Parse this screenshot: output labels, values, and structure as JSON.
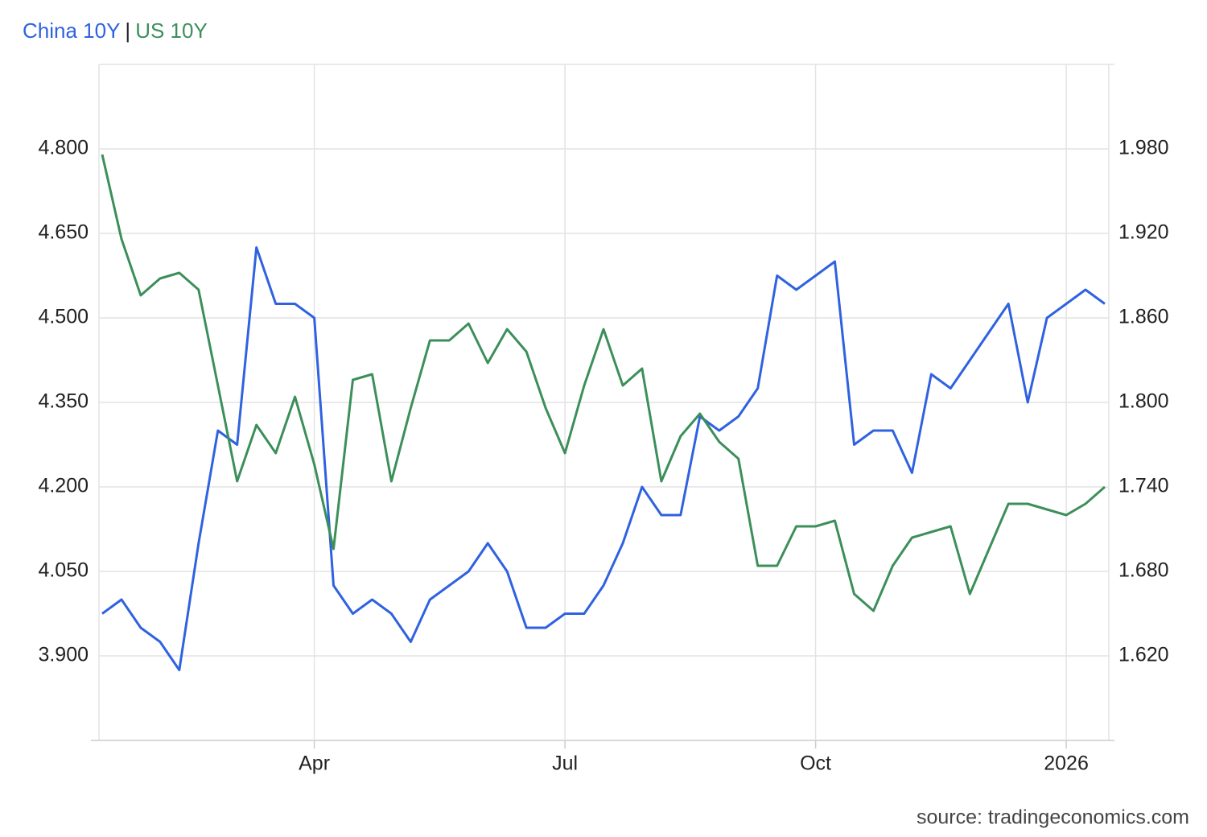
{
  "chart_data": {
    "type": "line",
    "legend_separator": "|",
    "source": "source: tradingeconomics.com",
    "grid": true,
    "categories": [
      null,
      null,
      null,
      null,
      null,
      null,
      null,
      null,
      null,
      null,
      null,
      "Apr",
      null,
      null,
      null,
      null,
      null,
      null,
      null,
      null,
      null,
      null,
      null,
      null,
      "Jul",
      null,
      null,
      null,
      null,
      null,
      null,
      null,
      null,
      null,
      null,
      null,
      null,
      "Oct",
      null,
      null,
      null,
      null,
      null,
      null,
      null,
      null,
      null,
      null,
      null,
      null,
      "2026",
      null,
      null
    ],
    "series": [
      {
        "name": "China 10Y",
        "color": "#2f62e0",
        "axis": "y2",
        "values": [
          1.65,
          1.66,
          1.64,
          1.63,
          1.61,
          1.7,
          1.78,
          1.77,
          1.91,
          1.87,
          1.87,
          1.86,
          1.67,
          1.65,
          1.66,
          1.65,
          1.63,
          1.66,
          1.67,
          1.68,
          1.7,
          1.68,
          1.64,
          1.64,
          1.65,
          1.65,
          1.67,
          1.7,
          1.74,
          1.72,
          1.72,
          1.79,
          1.78,
          1.79,
          1.81,
          1.89,
          1.88,
          1.89,
          1.9,
          1.77,
          1.78,
          1.78,
          1.75,
          1.82,
          1.81,
          1.83,
          1.85,
          1.87,
          1.8,
          1.86,
          1.87,
          1.88,
          1.87
        ]
      },
      {
        "name": "US 10Y",
        "color": "#3c8f5a",
        "axis": "y",
        "values": [
          4.79,
          4.64,
          4.54,
          4.57,
          4.58,
          4.55,
          4.38,
          4.21,
          4.31,
          4.26,
          4.36,
          4.24,
          4.09,
          4.39,
          4.4,
          4.21,
          4.34,
          4.46,
          4.46,
          4.49,
          4.42,
          4.48,
          4.44,
          4.34,
          4.26,
          4.38,
          4.48,
          4.38,
          4.41,
          4.21,
          4.29,
          4.33,
          4.28,
          4.25,
          4.06,
          4.06,
          4.13,
          4.13,
          4.14,
          4.01,
          3.98,
          4.06,
          4.11,
          4.12,
          4.13,
          4.01,
          4.09,
          4.17,
          4.17,
          4.16,
          4.15,
          4.17,
          4.2
        ]
      }
    ],
    "ylim": [
      3.75,
      4.95
    ],
    "yticks": [
      {
        "value": 3.9,
        "label": "3.900"
      },
      {
        "value": 4.05,
        "label": "4.050"
      },
      {
        "value": 4.2,
        "label": "4.200"
      },
      {
        "value": 4.35,
        "label": "4.350"
      },
      {
        "value": 4.5,
        "label": "4.500"
      },
      {
        "value": 4.65,
        "label": "4.650"
      },
      {
        "value": 4.8,
        "label": "4.800"
      }
    ],
    "y2lim": [
      1.56,
      2.04
    ],
    "y2ticks": [
      {
        "value": 1.62,
        "label": "1.620"
      },
      {
        "value": 1.68,
        "label": "1.680"
      },
      {
        "value": 1.74,
        "label": "1.740"
      },
      {
        "value": 1.8,
        "label": "1.800"
      },
      {
        "value": 1.86,
        "label": "1.860"
      },
      {
        "value": 1.92,
        "label": "1.920"
      },
      {
        "value": 1.98,
        "label": "1.980"
      }
    ]
  }
}
